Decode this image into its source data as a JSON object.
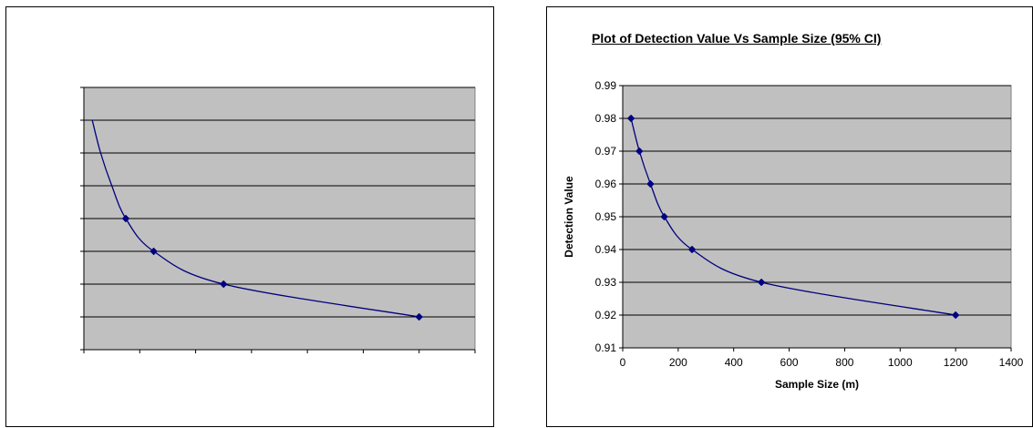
{
  "chart_data": [
    {
      "type": "line",
      "title": "",
      "xlabel": "",
      "ylabel": "",
      "x": [
        30,
        60,
        100,
        150,
        250,
        500,
        1200
      ],
      "series": [
        {
          "values": [
            0.98,
            0.97,
            0.96,
            0.95,
            0.94,
            0.93,
            0.92
          ],
          "markers_visible": [
            false,
            false,
            false,
            true,
            true,
            true,
            true
          ]
        }
      ],
      "x_ticks": [],
      "y_ticks": [],
      "xlim": [
        0,
        1400
      ],
      "ylim": [
        0.91,
        0.99
      ],
      "grid": true,
      "plot_background": "#c0c0c0",
      "line_color": "#000080",
      "marker": "diamond",
      "legend": "none"
    },
    {
      "type": "line",
      "title": "Plot of Detection Value Vs Sample Size (95% CI)",
      "xlabel": "Sample Size (m)",
      "ylabel": "Detection Value",
      "x": [
        30,
        60,
        100,
        150,
        250,
        500,
        1200
      ],
      "series": [
        {
          "values": [
            0.98,
            0.97,
            0.96,
            0.95,
            0.94,
            0.93,
            0.92
          ]
        }
      ],
      "x_ticks": [
        "0",
        "200",
        "400",
        "600",
        "800",
        "1000",
        "1200",
        "1400"
      ],
      "y_ticks": [
        "0.91",
        "0.92",
        "0.93",
        "0.94",
        "0.95",
        "0.96",
        "0.97",
        "0.98",
        "0.99"
      ],
      "xlim": [
        0,
        1400
      ],
      "ylim": [
        0.91,
        0.99
      ],
      "grid": true,
      "plot_background": "#c0c0c0",
      "line_color": "#000080",
      "marker": "diamond",
      "legend": "none"
    }
  ]
}
